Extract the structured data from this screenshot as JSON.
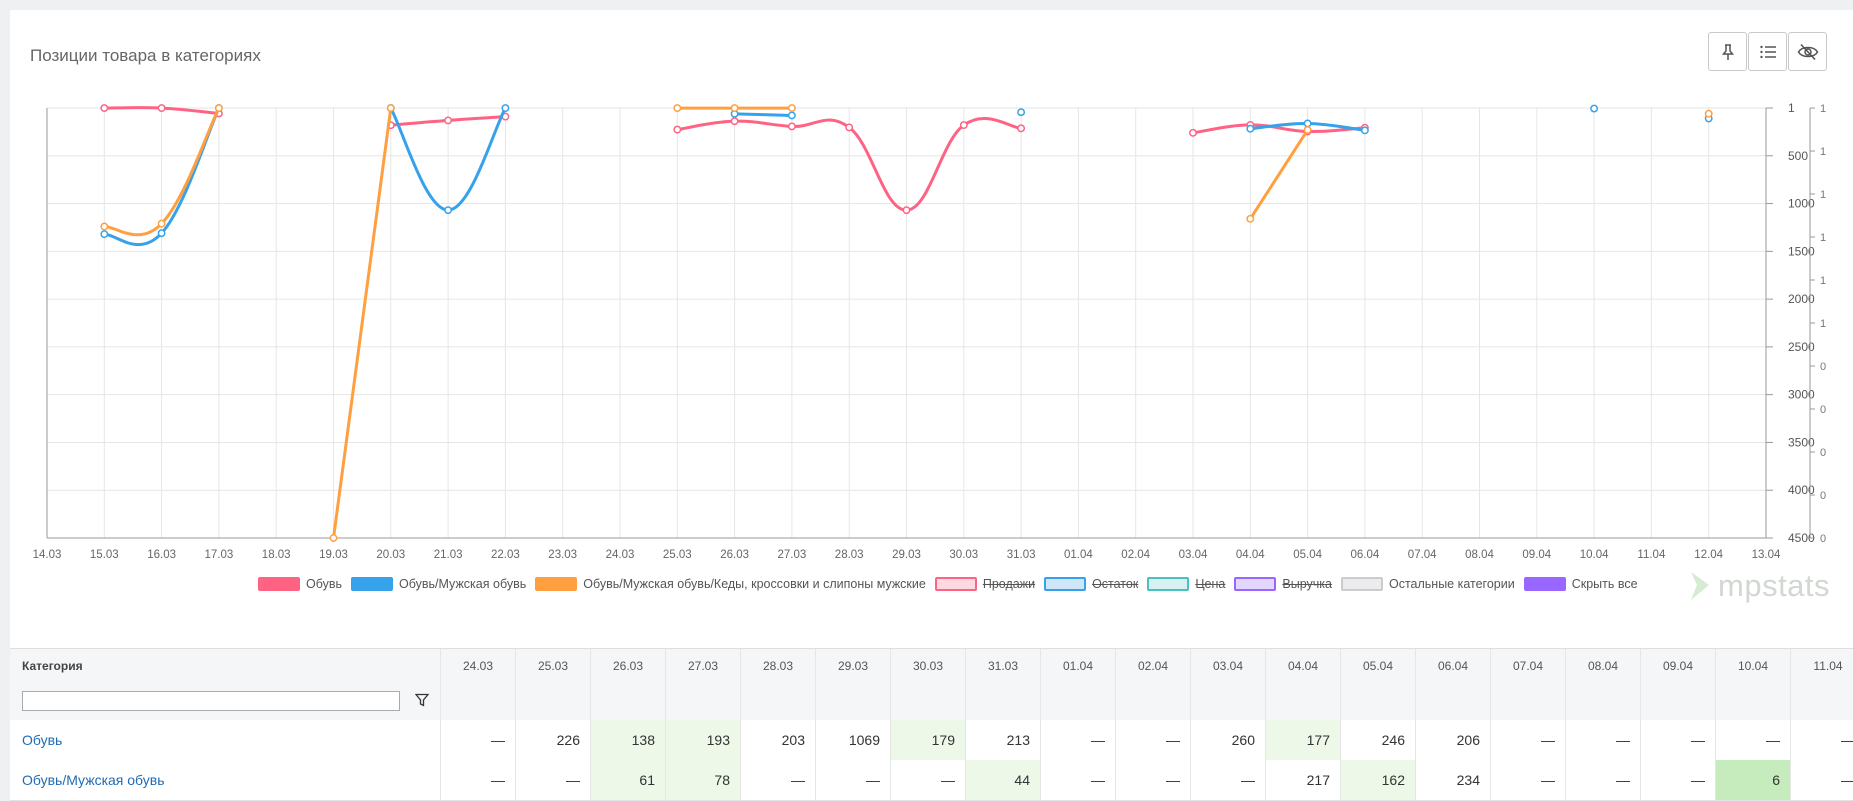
{
  "header": {
    "title": "Позиции товара в категориях"
  },
  "toolbar": [
    {
      "name": "pin-button",
      "icon": "pin-icon"
    },
    {
      "name": "list-button",
      "icon": "list-icon"
    },
    {
      "name": "hide-button",
      "icon": "eye-off-icon"
    }
  ],
  "chart_data": {
    "type": "line",
    "x": [
      "14.03",
      "15.03",
      "16.03",
      "17.03",
      "18.03",
      "19.03",
      "20.03",
      "21.03",
      "22.03",
      "23.03",
      "24.03",
      "25.03",
      "26.03",
      "27.03",
      "28.03",
      "29.03",
      "30.03",
      "31.03",
      "01.04",
      "02.04",
      "03.04",
      "04.04",
      "05.04",
      "06.04",
      "07.04",
      "08.04",
      "09.04",
      "10.04",
      "11.04",
      "12.04",
      "13.04"
    ],
    "y_axis": {
      "reversed": true,
      "min": 0,
      "max": 4500,
      "ticks": [
        "1",
        "500",
        "1000",
        "1500",
        "2000",
        "2500",
        "3000",
        "3500",
        "4000",
        "4500"
      ]
    },
    "y2_axis": {
      "ticks": [
        "1",
        "1",
        "1",
        "1",
        "1",
        "1",
        "0",
        "0",
        "0",
        "0",
        "0"
      ]
    },
    "grid": true,
    "series": [
      {
        "name": "Обувь",
        "color": "#ff6384",
        "values": [
          null,
          1,
          1,
          57,
          null,
          null,
          180,
          130,
          90,
          null,
          null,
          226,
          138,
          193,
          203,
          1069,
          179,
          213,
          null,
          null,
          260,
          177,
          246,
          206,
          null,
          null,
          null,
          null,
          null,
          null,
          null
        ]
      },
      {
        "name": "Обувь/Мужская обувь",
        "color": "#36a2eb",
        "values": [
          null,
          1320,
          1310,
          1,
          null,
          null,
          1,
          1069,
          1,
          null,
          null,
          null,
          61,
          78,
          null,
          null,
          null,
          44,
          null,
          null,
          null,
          217,
          162,
          234,
          null,
          null,
          null,
          6,
          null,
          110,
          null
        ]
      },
      {
        "name": "Обувь/Мужская обувь/Кеды, кроссовки и слипоны мужские",
        "color": "#ff9f40",
        "values": [
          null,
          1240,
          1210,
          1,
          null,
          4500,
          1,
          null,
          null,
          null,
          null,
          1,
          1,
          1,
          null,
          null,
          null,
          null,
          null,
          null,
          null,
          1160,
          230,
          null,
          null,
          null,
          null,
          null,
          null,
          60,
          null
        ]
      }
    ]
  },
  "legend": [
    {
      "label": "Обувь",
      "fill": "#ff6384",
      "border": "#ff6384",
      "struck": false
    },
    {
      "label": "Обувь/Мужская обувь",
      "fill": "#36a2eb",
      "border": "#36a2eb",
      "struck": false
    },
    {
      "label": "Обувь/Мужская обувь/Кеды, кроссовки и слипоны мужские",
      "fill": "#ff9f40",
      "border": "#ff9f40",
      "struck": false
    },
    {
      "label": "Продажи",
      "fill": "#ffd9e1",
      "border": "#ff6384",
      "struck": true
    },
    {
      "label": "Остаток",
      "fill": "#cfe6f9",
      "border": "#36a2eb",
      "struck": true
    },
    {
      "label": "Цена",
      "fill": "#d6f1f0",
      "border": "#4bc0c0",
      "struck": true
    },
    {
      "label": "Выручка",
      "fill": "#e3d6ff",
      "border": "#9966ff",
      "struck": true
    },
    {
      "label": "Остальные категории",
      "fill": "#ececec",
      "border": "#c9cbcf",
      "struck": false
    },
    {
      "label": "Скрыть все",
      "fill": "#9966ff",
      "border": "#9966ff",
      "struck": false
    }
  ],
  "brand": "mpstats",
  "table": {
    "header_category": "Категория",
    "dates": [
      "24.03",
      "25.03",
      "26.03",
      "27.03",
      "28.03",
      "29.03",
      "30.03",
      "31.03",
      "01.04",
      "02.04",
      "03.04",
      "04.04",
      "05.04",
      "06.04",
      "07.04",
      "08.04",
      "09.04",
      "10.04",
      "11.04"
    ],
    "filter_placeholder": "",
    "rows": [
      {
        "category": "Обувь",
        "values": [
          "—",
          "226",
          "138",
          "193",
          "203",
          "1069",
          "179",
          "213",
          "—",
          "—",
          "260",
          "177",
          "246",
          "206",
          "—",
          "—",
          "—",
          "—",
          "—"
        ],
        "highlight": [
          "",
          "",
          "lg1",
          "lg1",
          "",
          "",
          "lg1",
          "",
          "",
          "",
          "",
          "lg1",
          "",
          "",
          "",
          "",
          "",
          "",
          ""
        ]
      },
      {
        "category": "Обувь/Мужская обувь",
        "values": [
          "—",
          "—",
          "61",
          "78",
          "—",
          "—",
          "—",
          "44",
          "—",
          "—",
          "—",
          "217",
          "162",
          "234",
          "—",
          "—",
          "—",
          "6",
          "—"
        ],
        "highlight": [
          "",
          "",
          "lg1",
          "lg1",
          "",
          "",
          "",
          "lg1",
          "",
          "",
          "",
          "",
          "lg1",
          "",
          "",
          "",
          "",
          "lg2",
          ""
        ]
      }
    ]
  }
}
